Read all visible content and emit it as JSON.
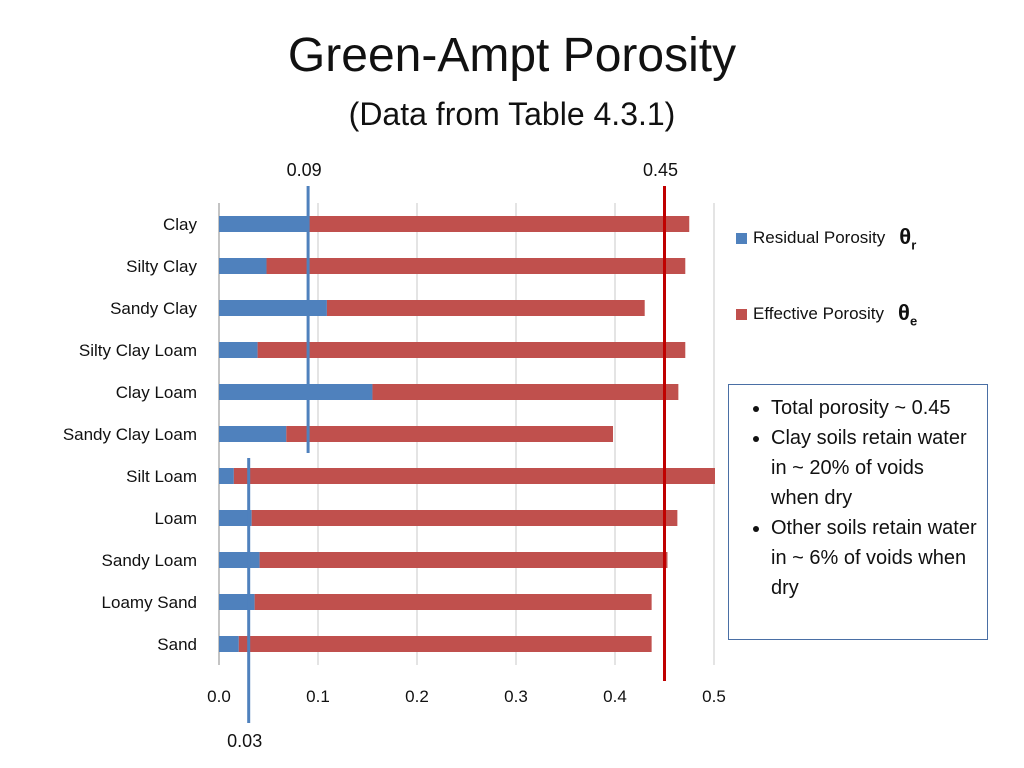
{
  "title": "Green-Ampt Porosity",
  "subtitle": "(Data from Table 4.3.1)",
  "chart_data": {
    "type": "bar",
    "orientation": "horizontal",
    "stacked": true,
    "categories": [
      "Clay",
      "Silty Clay",
      "Sandy Clay",
      "Silty Clay Loam",
      "Clay Loam",
      "Sandy Clay Loam",
      "Silt Loam",
      "Loam",
      "Sandy Loam",
      "Loamy Sand",
      "Sand"
    ],
    "series": [
      {
        "name": "Residual Porosity",
        "color": "#4f81bd",
        "values": [
          0.09,
          0.048,
          0.109,
          0.039,
          0.155,
          0.068,
          0.015,
          0.033,
          0.041,
          0.036,
          0.02
        ]
      },
      {
        "name": "Effective Porosity",
        "color": "#c0504d",
        "values": [
          0.385,
          0.423,
          0.321,
          0.432,
          0.309,
          0.33,
          0.486,
          0.43,
          0.412,
          0.401,
          0.417
        ]
      }
    ],
    "xlim": [
      0,
      0.5
    ],
    "xticks": [
      "0.0",
      "0.1",
      "0.2",
      "0.3",
      "0.4",
      "0.5"
    ],
    "grid": "vertical",
    "legend_position": "right",
    "reference_lines": [
      {
        "value": 0.09,
        "label": "0.09",
        "color": "#4f81bd",
        "span": "Clay to Sandy Clay Loam",
        "label_position": "top"
      },
      {
        "value": 0.45,
        "label": "0.45",
        "color": "#c00000",
        "span": "all",
        "label_position": "top"
      },
      {
        "value": 0.03,
        "label": "0.03",
        "color": "#4f81bd",
        "span": "Silt Loam to Sand",
        "label_position": "bottom"
      }
    ]
  },
  "legend": {
    "items": [
      {
        "label": "Residual Porosity",
        "color": "#4f81bd",
        "symbol": "θ",
        "sub": "r"
      },
      {
        "label": "Effective Porosity",
        "color": "#c0504d",
        "symbol": "θ",
        "sub": "e"
      }
    ]
  },
  "notes": [
    "Total porosity ~ 0.45",
    "Clay soils retain water in ~ 20% of voids when dry",
    "Other soils retain water in ~ 6% of voids when dry"
  ]
}
